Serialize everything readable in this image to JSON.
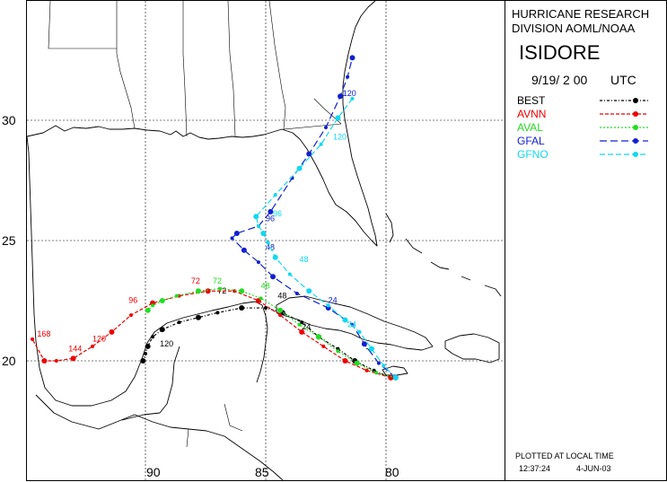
{
  "header": {
    "line1": "HURRICANE RESEARCH",
    "line2": "DIVISION AOML/NOAA",
    "storm": "ISIDORE",
    "datetime": "9/19/ 2 00",
    "tz": "UTC"
  },
  "legend": [
    {
      "name": "BEST",
      "color": "#000000"
    },
    {
      "name": "AVNN",
      "color": "#ee0000"
    },
    {
      "name": "AVAL",
      "color": "#22dd22"
    },
    {
      "name": "GFAL",
      "color": "#1020d0"
    },
    {
      "name": "GFNO",
      "color": "#10d8f0"
    }
  ],
  "footer": {
    "plotted": "PLOTTED AT LOCAL TIME",
    "time": "12:37:24",
    "date": "4-JUN-03"
  },
  "axes": {
    "lat_labels": [
      "30",
      "25",
      "20"
    ],
    "lon_labels": [
      "90",
      "85",
      "80"
    ]
  },
  "tracks": {
    "BEST": {
      "color": "#000000",
      "points": [
        [
          -79.8,
          19.3
        ],
        [
          -80.5,
          19.6
        ],
        [
          -81.3,
          20.0
        ],
        [
          -82.0,
          20.5
        ],
        [
          -82.8,
          21.0
        ],
        [
          -83.5,
          21.6
        ],
        [
          -84.3,
          22.0
        ],
        [
          -85.0,
          22.2
        ],
        [
          -86.0,
          22.2
        ],
        [
          -87.0,
          22.0
        ],
        [
          -87.8,
          21.8
        ],
        [
          -88.6,
          21.6
        ],
        [
          -89.3,
          21.3
        ],
        [
          -89.7,
          21.0
        ],
        [
          -89.9,
          20.6
        ],
        [
          -90.0,
          20.3
        ],
        [
          -90.1,
          20.0
        ]
      ],
      "labels": [
        {
          "text": "24",
          "at": [
            -83.5,
            21.3
          ]
        },
        {
          "text": "48",
          "at": [
            -84.5,
            22.6
          ]
        },
        {
          "text": "72",
          "at": [
            -87.0,
            22.8
          ]
        },
        {
          "text": "120",
          "at": [
            -89.4,
            20.6
          ]
        }
      ]
    },
    "AVNN": {
      "color": "#ee0000",
      "points": [
        [
          -79.8,
          19.3
        ],
        [
          -80.8,
          19.6
        ],
        [
          -81.7,
          20.0
        ],
        [
          -82.6,
          20.6
        ],
        [
          -83.5,
          21.2
        ],
        [
          -84.4,
          21.9
        ],
        [
          -85.3,
          22.5
        ],
        [
          -86.3,
          22.9
        ],
        [
          -87.4,
          22.9
        ],
        [
          -88.6,
          22.7
        ],
        [
          -89.7,
          22.4
        ],
        [
          -90.6,
          21.9
        ],
        [
          -91.4,
          21.2
        ],
        [
          -92.2,
          20.6
        ],
        [
          -93.0,
          20.1
        ],
        [
          -93.7,
          20.0
        ],
        [
          -94.2,
          20.0
        ],
        [
          -94.7,
          20.9
        ]
      ],
      "labels": [
        {
          "text": "72",
          "at": [
            -88.1,
            23.2
          ]
        },
        {
          "text": "96",
          "at": [
            -90.7,
            22.4
          ]
        },
        {
          "text": "120",
          "at": [
            -92.2,
            20.8
          ]
        },
        {
          "text": "144",
          "at": [
            -93.2,
            20.4
          ]
        },
        {
          "text": "168",
          "at": [
            -94.5,
            21.0
          ]
        }
      ]
    },
    "AVAL": {
      "color": "#22dd22",
      "points": [
        [
          -79.6,
          19.3
        ],
        [
          -80.4,
          19.5
        ],
        [
          -81.2,
          19.9
        ],
        [
          -82.0,
          20.4
        ],
        [
          -82.8,
          21.0
        ],
        [
          -83.6,
          21.5
        ],
        [
          -84.4,
          22.1
        ],
        [
          -85.2,
          22.6
        ],
        [
          -86.0,
          22.9
        ],
        [
          -86.9,
          23.0
        ],
        [
          -87.8,
          22.9
        ],
        [
          -88.7,
          22.7
        ],
        [
          -89.3,
          22.5
        ],
        [
          -89.7,
          22.3
        ],
        [
          -89.9,
          22.1
        ]
      ],
      "labels": [
        {
          "text": "48",
          "at": [
            -85.2,
            23.0
          ]
        },
        {
          "text": "72",
          "at": [
            -87.2,
            23.2
          ]
        }
      ]
    },
    "GFAL": {
      "color": "#1020d0",
      "points": [
        [
          -79.6,
          19.3
        ],
        [
          -80.3,
          19.9
        ],
        [
          -80.9,
          20.7
        ],
        [
          -81.4,
          21.5
        ],
        [
          -82.4,
          22.2
        ],
        [
          -83.7,
          22.8
        ],
        [
          -84.7,
          23.5
        ],
        [
          -85.3,
          24.1
        ],
        [
          -85.9,
          24.6
        ],
        [
          -86.4,
          25.1
        ],
        [
          -86.2,
          25.3
        ],
        [
          -85.3,
          25.6
        ],
        [
          -84.8,
          26.2
        ],
        [
          -83.9,
          27.6
        ],
        [
          -83.2,
          28.6
        ],
        [
          -82.5,
          29.7
        ],
        [
          -81.9,
          31.0
        ],
        [
          -81.6,
          31.8
        ],
        [
          -81.4,
          32.6
        ]
      ],
      "labels": [
        {
          "text": "24",
          "at": [
            -82.4,
            22.4
          ]
        },
        {
          "text": "48",
          "at": [
            -85.0,
            24.6
          ]
        },
        {
          "text": "96",
          "at": [
            -85.0,
            25.8
          ]
        },
        {
          "text": "120",
          "at": [
            -81.8,
            31.0
          ]
        }
      ]
    },
    "GFNO": {
      "color": "#10d8f0",
      "points": [
        [
          -79.6,
          19.3
        ],
        [
          -80.1,
          19.8
        ],
        [
          -80.6,
          20.5
        ],
        [
          -81.1,
          21.2
        ],
        [
          -81.7,
          21.7
        ],
        [
          -82.4,
          22.3
        ],
        [
          -83.2,
          22.9
        ],
        [
          -84.0,
          23.6
        ],
        [
          -84.6,
          24.3
        ],
        [
          -84.9,
          24.9
        ],
        [
          -85.1,
          25.3
        ],
        [
          -85.3,
          25.6
        ],
        [
          -85.4,
          26.0
        ],
        [
          -84.6,
          26.9
        ],
        [
          -83.6,
          28.0
        ],
        [
          -82.7,
          29.0
        ],
        [
          -82.0,
          30.1
        ],
        [
          -81.4,
          30.9
        ]
      ],
      "labels": [
        {
          "text": "24",
          "at": [
            -81.6,
            21.4
          ]
        },
        {
          "text": "48",
          "at": [
            -83.6,
            24.1
          ]
        },
        {
          "text": "96",
          "at": [
            -84.7,
            26.0
          ]
        },
        {
          "text": "120",
          "at": [
            -82.2,
            29.2
          ]
        }
      ]
    }
  }
}
